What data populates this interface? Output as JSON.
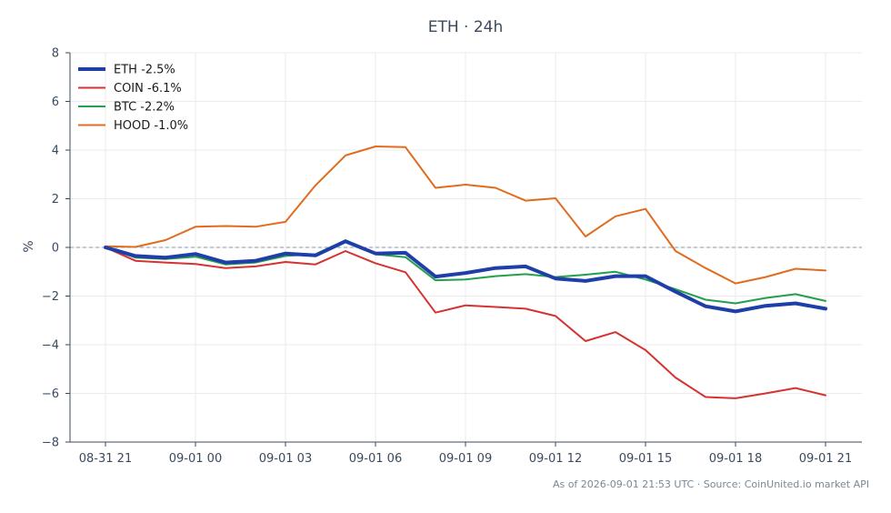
{
  "chart_data": {
    "type": "line",
    "title": "ETH · 24h",
    "ylabel": "%",
    "xlabel": "",
    "ylim": [
      -8,
      8
    ],
    "y_ticks": [
      8,
      6,
      4,
      2,
      0,
      -2,
      -4,
      -6,
      -8
    ],
    "y_tick_labels": [
      "8",
      "6",
      "4",
      "2",
      "0",
      "−2",
      "−4",
      "−6",
      "−8"
    ],
    "x_hours_ticks": [
      "08-31 21",
      "09-01 00",
      "09-01 03",
      "09-01 06",
      "09-01 09",
      "09-01 12",
      "09-01 15",
      "09-01 18",
      "09-01 21"
    ],
    "x": [
      "08-31 21:00",
      "08-31 22:00",
      "08-31 23:00",
      "09-01 00:00",
      "09-01 01:00",
      "09-01 02:00",
      "09-01 03:00",
      "09-01 04:00",
      "09-01 05:00",
      "09-01 06:00",
      "09-01 07:00",
      "09-01 08:00",
      "09-01 09:00",
      "09-01 10:00",
      "09-01 11:00",
      "09-01 12:00",
      "09-01 13:00",
      "09-01 14:00",
      "09-01 15:00",
      "09-01 16:00",
      "09-01 17:00",
      "09-01 18:00",
      "09-01 19:00",
      "09-01 20:00",
      "09-01 21:00"
    ],
    "grid": true,
    "zero_line": true,
    "legend_position": "top-left",
    "series": [
      {
        "name": "ETH -2.5%",
        "color": "#1f3fa8",
        "width": "bold",
        "values": [
          0,
          -0.35,
          -0.42,
          -0.27,
          -0.62,
          -0.55,
          -0.25,
          -0.33,
          0.25,
          -0.25,
          -0.22,
          -1.2,
          -1.05,
          -0.85,
          -0.78,
          -1.28,
          -1.38,
          -1.18,
          -1.18,
          -1.82,
          -2.42,
          -2.63,
          -2.4,
          -2.3,
          -2.52
        ]
      },
      {
        "name": "COIN -6.1%",
        "color": "#d63230",
        "values": [
          0,
          -0.55,
          -0.62,
          -0.68,
          -0.85,
          -0.78,
          -0.6,
          -0.7,
          -0.15,
          -0.65,
          -1.02,
          -2.68,
          -2.38,
          -2.45,
          -2.52,
          -2.82,
          -3.85,
          -3.48,
          -4.22,
          -5.35,
          -6.15,
          -6.2,
          -6.0,
          -5.78,
          -6.08
        ]
      },
      {
        "name": "BTC -2.2%",
        "color": "#22a04b",
        "values": [
          0,
          -0.42,
          -0.48,
          -0.38,
          -0.7,
          -0.62,
          -0.35,
          -0.28,
          0.3,
          -0.28,
          -0.4,
          -1.35,
          -1.32,
          -1.18,
          -1.1,
          -1.22,
          -1.12,
          -1.0,
          -1.32,
          -1.72,
          -2.15,
          -2.3,
          -2.08,
          -1.92,
          -2.2
        ]
      },
      {
        "name": "HOOD -1.0%",
        "color": "#e06c1f",
        "values": [
          0.05,
          0.02,
          0.3,
          0.85,
          0.88,
          0.85,
          1.05,
          2.55,
          3.78,
          4.15,
          4.12,
          2.45,
          2.58,
          2.45,
          1.92,
          2.02,
          0.45,
          1.28,
          1.58,
          -0.15,
          -0.85,
          -1.48,
          -1.22,
          -0.88,
          -0.95
        ]
      }
    ]
  },
  "source_note": "As of 2026-09-01 21:53 UTC · Source: CoinUnited.io market API"
}
